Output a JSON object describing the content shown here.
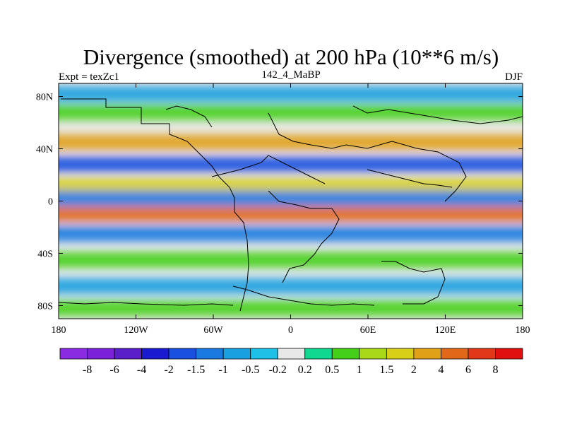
{
  "chart_data": {
    "type": "heatmap",
    "title": "Divergence (smoothed) at 200 hPa (10**6 m/s)",
    "subtitle_left": "Expt = texZc1",
    "subtitle_center": "142_4_MaBP",
    "subtitle_right": "DJF",
    "x_ticks": [
      "180",
      "120W",
      "60W",
      "0",
      "60E",
      "120E",
      "180"
    ],
    "x_tick_values": [
      -180,
      -120,
      -60,
      0,
      60,
      120,
      180
    ],
    "y_ticks": [
      "80N",
      "40N",
      "0",
      "40S",
      "80S"
    ],
    "y_tick_values": [
      80,
      40,
      0,
      -40,
      -80
    ],
    "xlim": [
      -180,
      180
    ],
    "ylim": [
      -90,
      90
    ],
    "colorbar": {
      "labels": [
        "-8",
        "-6",
        "-4",
        "-2",
        "-1.5",
        "-1",
        "-0.5",
        "-0.2",
        "0.2",
        "0.5",
        "1",
        "1.5",
        "2",
        "4",
        "6",
        "8"
      ],
      "colors": [
        "#8a2be2",
        "#7b22d8",
        "#5a1fc8",
        "#1a1ad0",
        "#1a50e0",
        "#1a7ae0",
        "#18a0e0",
        "#1ec0e8",
        "#e8e8e8",
        "#10d890",
        "#44d018",
        "#a8d818",
        "#d8d018",
        "#e0a018",
        "#e06818",
        "#e03818",
        "#e01010"
      ]
    },
    "bands": [
      {
        "lat": 82,
        "value": -1.0
      },
      {
        "lat": 68,
        "value": 0.5
      },
      {
        "lat": 45,
        "value": 2.0
      },
      {
        "lat": 28,
        "value": -2.0
      },
      {
        "lat": 12,
        "value": 1.5
      },
      {
        "lat": 2,
        "value": -1.5
      },
      {
        "lat": -10,
        "value": 4.0
      },
      {
        "lat": -25,
        "value": -1.5
      },
      {
        "lat": -45,
        "value": 0.5
      },
      {
        "lat": -65,
        "value": -1.0
      },
      {
        "lat": -82,
        "value": 0.5
      }
    ]
  }
}
